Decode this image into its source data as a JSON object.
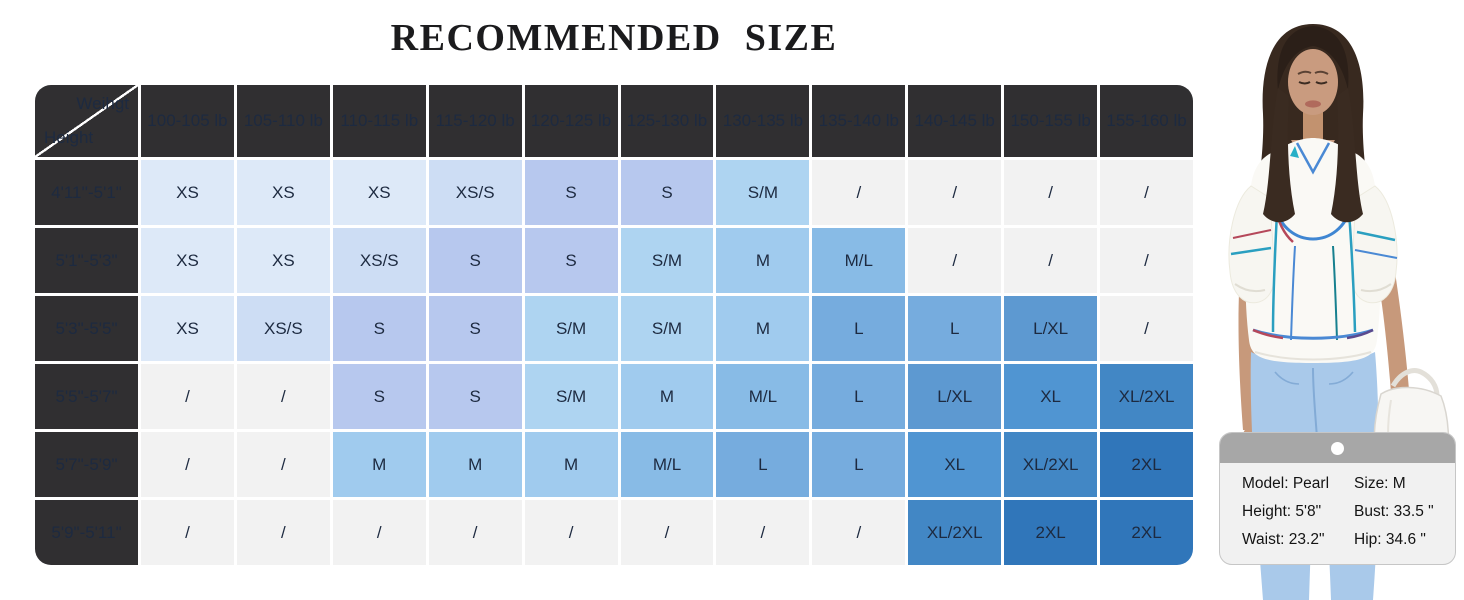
{
  "title": "RECOMMENDED SIZE",
  "chart_data": {
    "type": "table",
    "title": "RECOMMENDED SIZE",
    "corner": {
      "weight_label": "Weihgt",
      "height_label": "Height"
    },
    "columns": [
      "100-105 lb",
      "105-110 lb",
      "110-115 lb",
      "115-120 lb",
      "120-125 lb",
      "125-130 lb",
      "130-135 lb",
      "135-140 lb",
      "140-145 lb",
      "150-155 lb",
      "155-160 lb"
    ],
    "rows": [
      {
        "height": "4'11''-5'1\"",
        "cells": [
          "XS",
          "XS",
          "XS",
          "XS/S",
          "S",
          "S",
          "S/M",
          "/",
          "/",
          "/",
          "/"
        ]
      },
      {
        "height": "5'1\"-5'3\"",
        "cells": [
          "XS",
          "XS",
          "XS/S",
          "S",
          "S",
          "S/M",
          "M",
          "M/L",
          "/",
          "/",
          "/"
        ]
      },
      {
        "height": "5'3\"-5'5\"",
        "cells": [
          "XS",
          "XS/S",
          "S",
          "S",
          "S/M",
          "S/M",
          "M",
          "L",
          "L",
          "L/XL",
          "/"
        ]
      },
      {
        "height": "5'5\"-5'7\"",
        "cells": [
          "/",
          "/",
          "S",
          "S",
          "S/M",
          "M",
          "M/L",
          "L",
          "L/XL",
          "XL",
          "XL/2XL"
        ]
      },
      {
        "height": "5'7\"-5'9\"",
        "cells": [
          "/",
          "/",
          "M",
          "M",
          "M",
          "M/L",
          "L",
          "L",
          "XL",
          "XL/2XL",
          "2XL"
        ]
      },
      {
        "height": "5'9\"-5'11\"",
        "cells": [
          "/",
          "/",
          "/",
          "/",
          "/",
          "/",
          "/",
          "/",
          "XL/2XL",
          "2XL",
          "2XL"
        ]
      }
    ],
    "empty_marker": "/",
    "colors": {
      "header_bg": "#302f31",
      "header_text": "#ffffff",
      "cell_text": "#1d2a40",
      "empty_cell_bg": "#f2f2f2",
      "size_cell_bg": {
        "XS": "#dde9f8",
        "XS/S": "#cdddf4",
        "S": "#b7c8ee",
        "S/M": "#aed4f1",
        "M": "#a0cbee",
        "M/L": "#88bbe6",
        "L": "#76acde",
        "L/XL": "#5d99d1",
        "XL": "#5095d2",
        "XL/2XL": "#4287c5",
        "2XL": "#3076ba"
      }
    }
  },
  "model_card": {
    "band_color": "#a7a7a7",
    "body_color": "#f1f1f1",
    "hole_icon": "circle",
    "lines": [
      {
        "left": "Model: Pearl",
        "right": "Size: M"
      },
      {
        "left": "Height: 5'8\"",
        "right": "Bust: 33.5 \""
      },
      {
        "left": "Waist: 23.2\"",
        "right": "Hip: 34.6 \""
      }
    ]
  },
  "model_photo": {
    "alt": "Model wearing white puff-sleeve blouse with multicolor trim and light blue jeans, holding a white bag"
  }
}
